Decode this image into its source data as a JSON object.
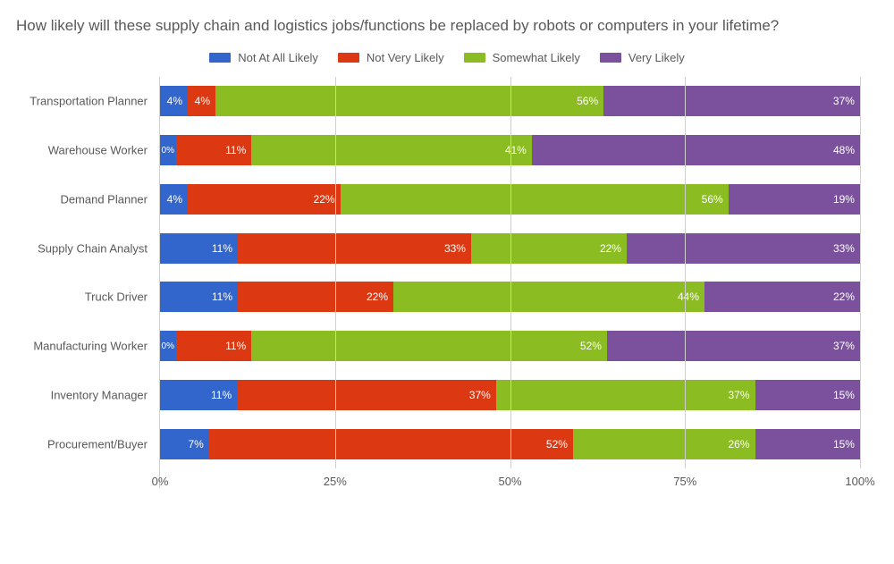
{
  "chart": {
    "type": "stacked-bar-horizontal",
    "title": "How likely will these supply chain and logistics jobs/functions be replaced by robots or computers in your lifetime?",
    "title_fontsize": 17,
    "title_color": "#595959",
    "background_color": "#ffffff",
    "grid_color": "#cfcfcf",
    "label_color": "#595959",
    "label_fontsize": 13,
    "value_label_fontsize": 12,
    "value_label_color": "#ffffff",
    "x_axis": {
      "min": 0,
      "max": 100,
      "ticks": [
        0,
        25,
        50,
        75,
        100
      ],
      "tick_labels": [
        "0%",
        "25%",
        "50%",
        "75%",
        "100%"
      ]
    },
    "series": [
      {
        "key": "not_at_all",
        "label": "Not At All Likely",
        "color": "#3366cc"
      },
      {
        "key": "not_very",
        "label": "Not Very Likely",
        "color": "#dc3912"
      },
      {
        "key": "somewhat",
        "label": "Somewhat Likely",
        "color": "#8bbc21"
      },
      {
        "key": "very",
        "label": "Very Likely",
        "color": "#7b519d"
      }
    ],
    "categories": [
      {
        "label": "Transportation Planner",
        "values": {
          "not_at_all": 4,
          "not_very": 4,
          "somewhat": 56,
          "very": 37
        }
      },
      {
        "label": "Warehouse Worker",
        "values": {
          "not_at_all": 0,
          "not_very": 11,
          "somewhat": 41,
          "very": 48
        }
      },
      {
        "label": "Demand Planner",
        "values": {
          "not_at_all": 4,
          "not_very": 22,
          "somewhat": 56,
          "very": 19
        }
      },
      {
        "label": "Supply Chain Analyst",
        "values": {
          "not_at_all": 11,
          "not_very": 33,
          "somewhat": 22,
          "very": 33
        }
      },
      {
        "label": "Truck Driver",
        "values": {
          "not_at_all": 11,
          "not_very": 22,
          "somewhat": 44,
          "very": 22
        }
      },
      {
        "label": "Manufacturing Worker",
        "values": {
          "not_at_all": 0,
          "not_very": 11,
          "somewhat": 52,
          "very": 37
        }
      },
      {
        "label": "Inventory Manager",
        "values": {
          "not_at_all": 11,
          "not_very": 37,
          "somewhat": 37,
          "very": 15
        }
      },
      {
        "label": "Procurement/Buyer",
        "values": {
          "not_at_all": 7,
          "not_very": 52,
          "somewhat": 26,
          "very": 15
        }
      }
    ]
  }
}
